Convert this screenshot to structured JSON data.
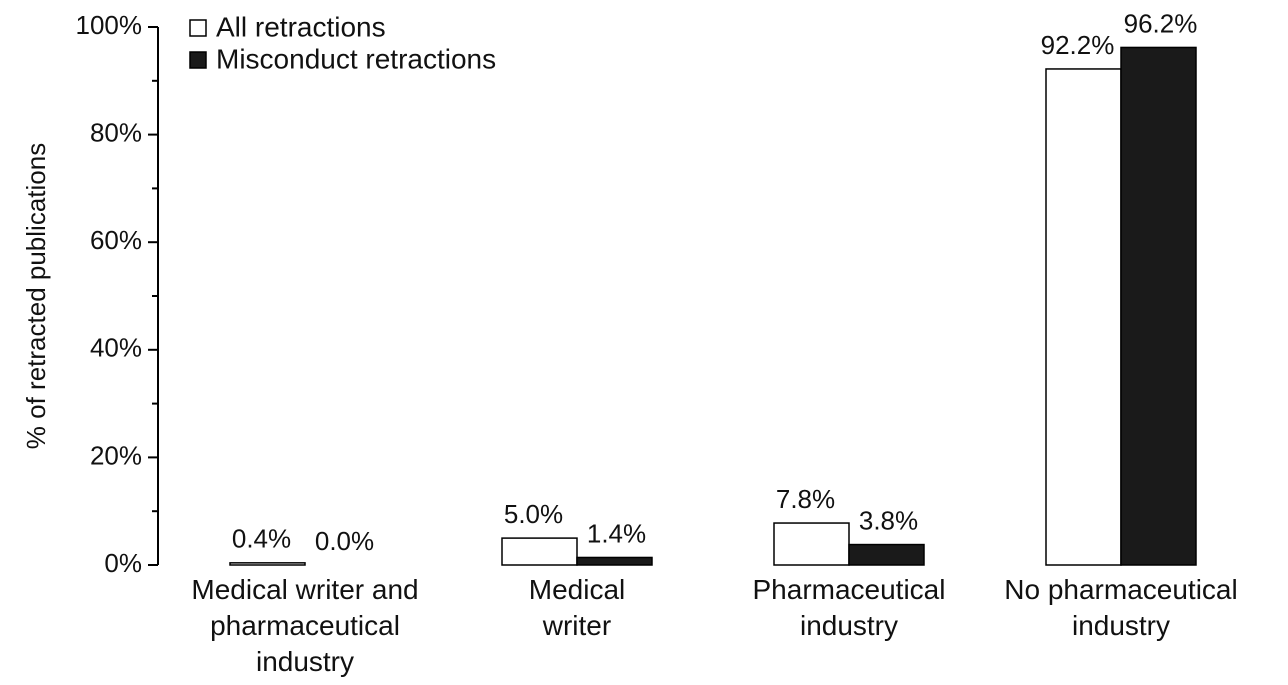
{
  "chart_data": {
    "type": "bar",
    "ylabel": "% of retracted publications",
    "categories": [
      "Medical writer and pharmaceutical industry",
      "Medical writer",
      "Pharmaceutical industry",
      "No pharmaceutical industry"
    ],
    "series": [
      {
        "name": "All retractions",
        "color": "#ffffff",
        "edgecolor": "#000000",
        "values": [
          0.4,
          5.0,
          7.8,
          92.2
        ],
        "value_labels": [
          "0.4%",
          "5.0%",
          "7.8%",
          "92.2%"
        ]
      },
      {
        "name": "Misconduct retractions",
        "color": "#1a1a1a",
        "edgecolor": "#000000",
        "values": [
          0.0,
          1.4,
          3.8,
          96.2
        ],
        "value_labels": [
          "0.0%",
          "1.4%",
          "3.8%",
          "96.2%"
        ]
      }
    ],
    "ylim": [
      0,
      100
    ],
    "yticks": [
      {
        "value": 0,
        "label": "0%"
      },
      {
        "value": 20,
        "label": "20%"
      },
      {
        "value": 40,
        "label": "40%"
      },
      {
        "value": 60,
        "label": "60%"
      },
      {
        "value": 80,
        "label": "80%"
      },
      {
        "value": 100,
        "label": "100%"
      }
    ],
    "yminorticks": [
      10,
      30,
      50,
      70,
      90
    ],
    "legend": "upper left"
  }
}
